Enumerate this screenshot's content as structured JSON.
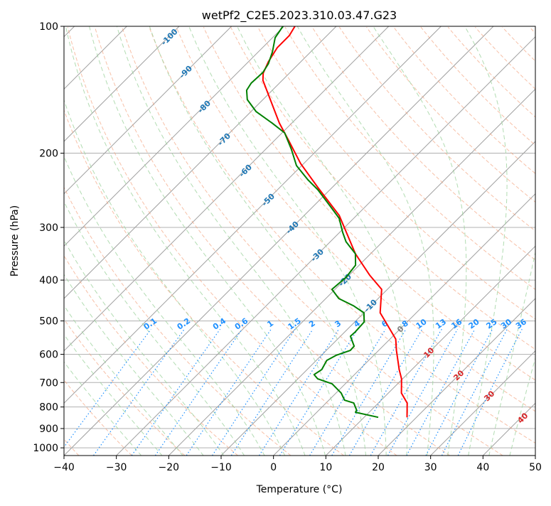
{
  "chart_data": {
    "type": "line",
    "subtype": "skew-t log-p",
    "title": "wetPf2_C2E5.2023.310.03.47.G23",
    "xlabel": "Temperature (°C)",
    "ylabel": "Pressure (hPa)",
    "xlim": [
      -40,
      50
    ],
    "ylim": [
      1043,
      100
    ],
    "x_ticks": [
      "−40",
      "−30",
      "−20",
      "−10",
      "0",
      "10",
      "20",
      "30",
      "40",
      "50"
    ],
    "x_tick_values": [
      -40,
      -30,
      -20,
      -10,
      0,
      10,
      20,
      30,
      40,
      50
    ],
    "y_ticks": [
      "100",
      "200",
      "300",
      "400",
      "500",
      "600",
      "700",
      "800",
      "900",
      "1000"
    ],
    "y_tick_values": [
      100,
      200,
      300,
      400,
      500,
      600,
      700,
      800,
      900,
      1000
    ],
    "grid": true,
    "isotherm_labels": [
      "-100",
      "-90",
      "-80",
      "-70",
      "-60",
      "-50",
      "-40",
      "-30",
      "-20",
      "-10",
      "0",
      "10",
      "20",
      "30",
      "40"
    ],
    "mixing_ratio_labels": [
      "0.1",
      "0.2",
      "0.4",
      "0.6",
      "1",
      "1.5",
      "2",
      "3",
      "4",
      "6",
      "8",
      "10",
      "13",
      "16",
      "20",
      "25",
      "30",
      "36"
    ],
    "colors": {
      "temperature": "#ff0000",
      "dewpoint": "#008000",
      "isotherm": "#a0a0a0",
      "dry_adiabat": "#f4a582",
      "moist_adiabat": "#9fd39f",
      "mixing_ratio": "#1e90ff",
      "label_negative": "#1f77b4",
      "label_zero": "#808080",
      "label_positive": "#d62728"
    },
    "series": [
      {
        "name": "Temperature",
        "pressure": [
          100,
          105.2,
          112.3,
          121.4,
          129.2,
          134.3,
          149.2,
          169.6,
          188.3,
          211.6,
          240.5,
          281,
          308.3,
          346.4,
          389.3,
          420.6,
          478.2,
          510.9,
          552.1,
          587.5,
          652.4,
          686.1,
          741.6,
          783,
          846.4
        ],
        "values": [
          -77.9,
          -77.2,
          -77.2,
          -76.2,
          -75.0,
          -73.7,
          -68.6,
          -62.4,
          -56.8,
          -50.6,
          -42.9,
          -33.3,
          -28.7,
          -22.9,
          -16.1,
          -11.1,
          -6.9,
          -3.2,
          1.1,
          3.4,
          7.6,
          9.8,
          12.5,
          15.5,
          18.2
        ]
      },
      {
        "name": "Dewpoint",
        "pressure": [
          100,
          106.4,
          115,
          122.8,
          128.7,
          136.4,
          141.8,
          149.2,
          159.4,
          169.6,
          179,
          195.7,
          214,
          231.3,
          244.2,
          270.2,
          285.3,
          308.3,
          324.3,
          346.4,
          368.7,
          393.8,
          420.6,
          442.5,
          459.9,
          478.2,
          502.9,
          531,
          543.5,
          573.8,
          587.5,
          603.7,
          620.3,
          652.4,
          670.4,
          686.1,
          705,
          741.6,
          770.9,
          783,
          814,
          823.5,
          846.4
        ],
        "values": [
          -80.2,
          -79.5,
          -77.3,
          -75.8,
          -75.2,
          -75.4,
          -74.9,
          -73.0,
          -69.0,
          -63.8,
          -59.5,
          -55.1,
          -51.0,
          -46.1,
          -42.3,
          -36.1,
          -32.8,
          -29.4,
          -27.0,
          -22.9,
          -20.7,
          -20.2,
          -20.6,
          -17.5,
          -13.4,
          -10.0,
          -8.2,
          -8.0,
          -8.1,
          -5.5,
          -5.4,
          -7.2,
          -8.0,
          -7.2,
          -7.7,
          -6.2,
          -2.5,
          1.0,
          3.0,
          5.3,
          7.2,
          7.4,
          12.7
        ]
      }
    ]
  }
}
